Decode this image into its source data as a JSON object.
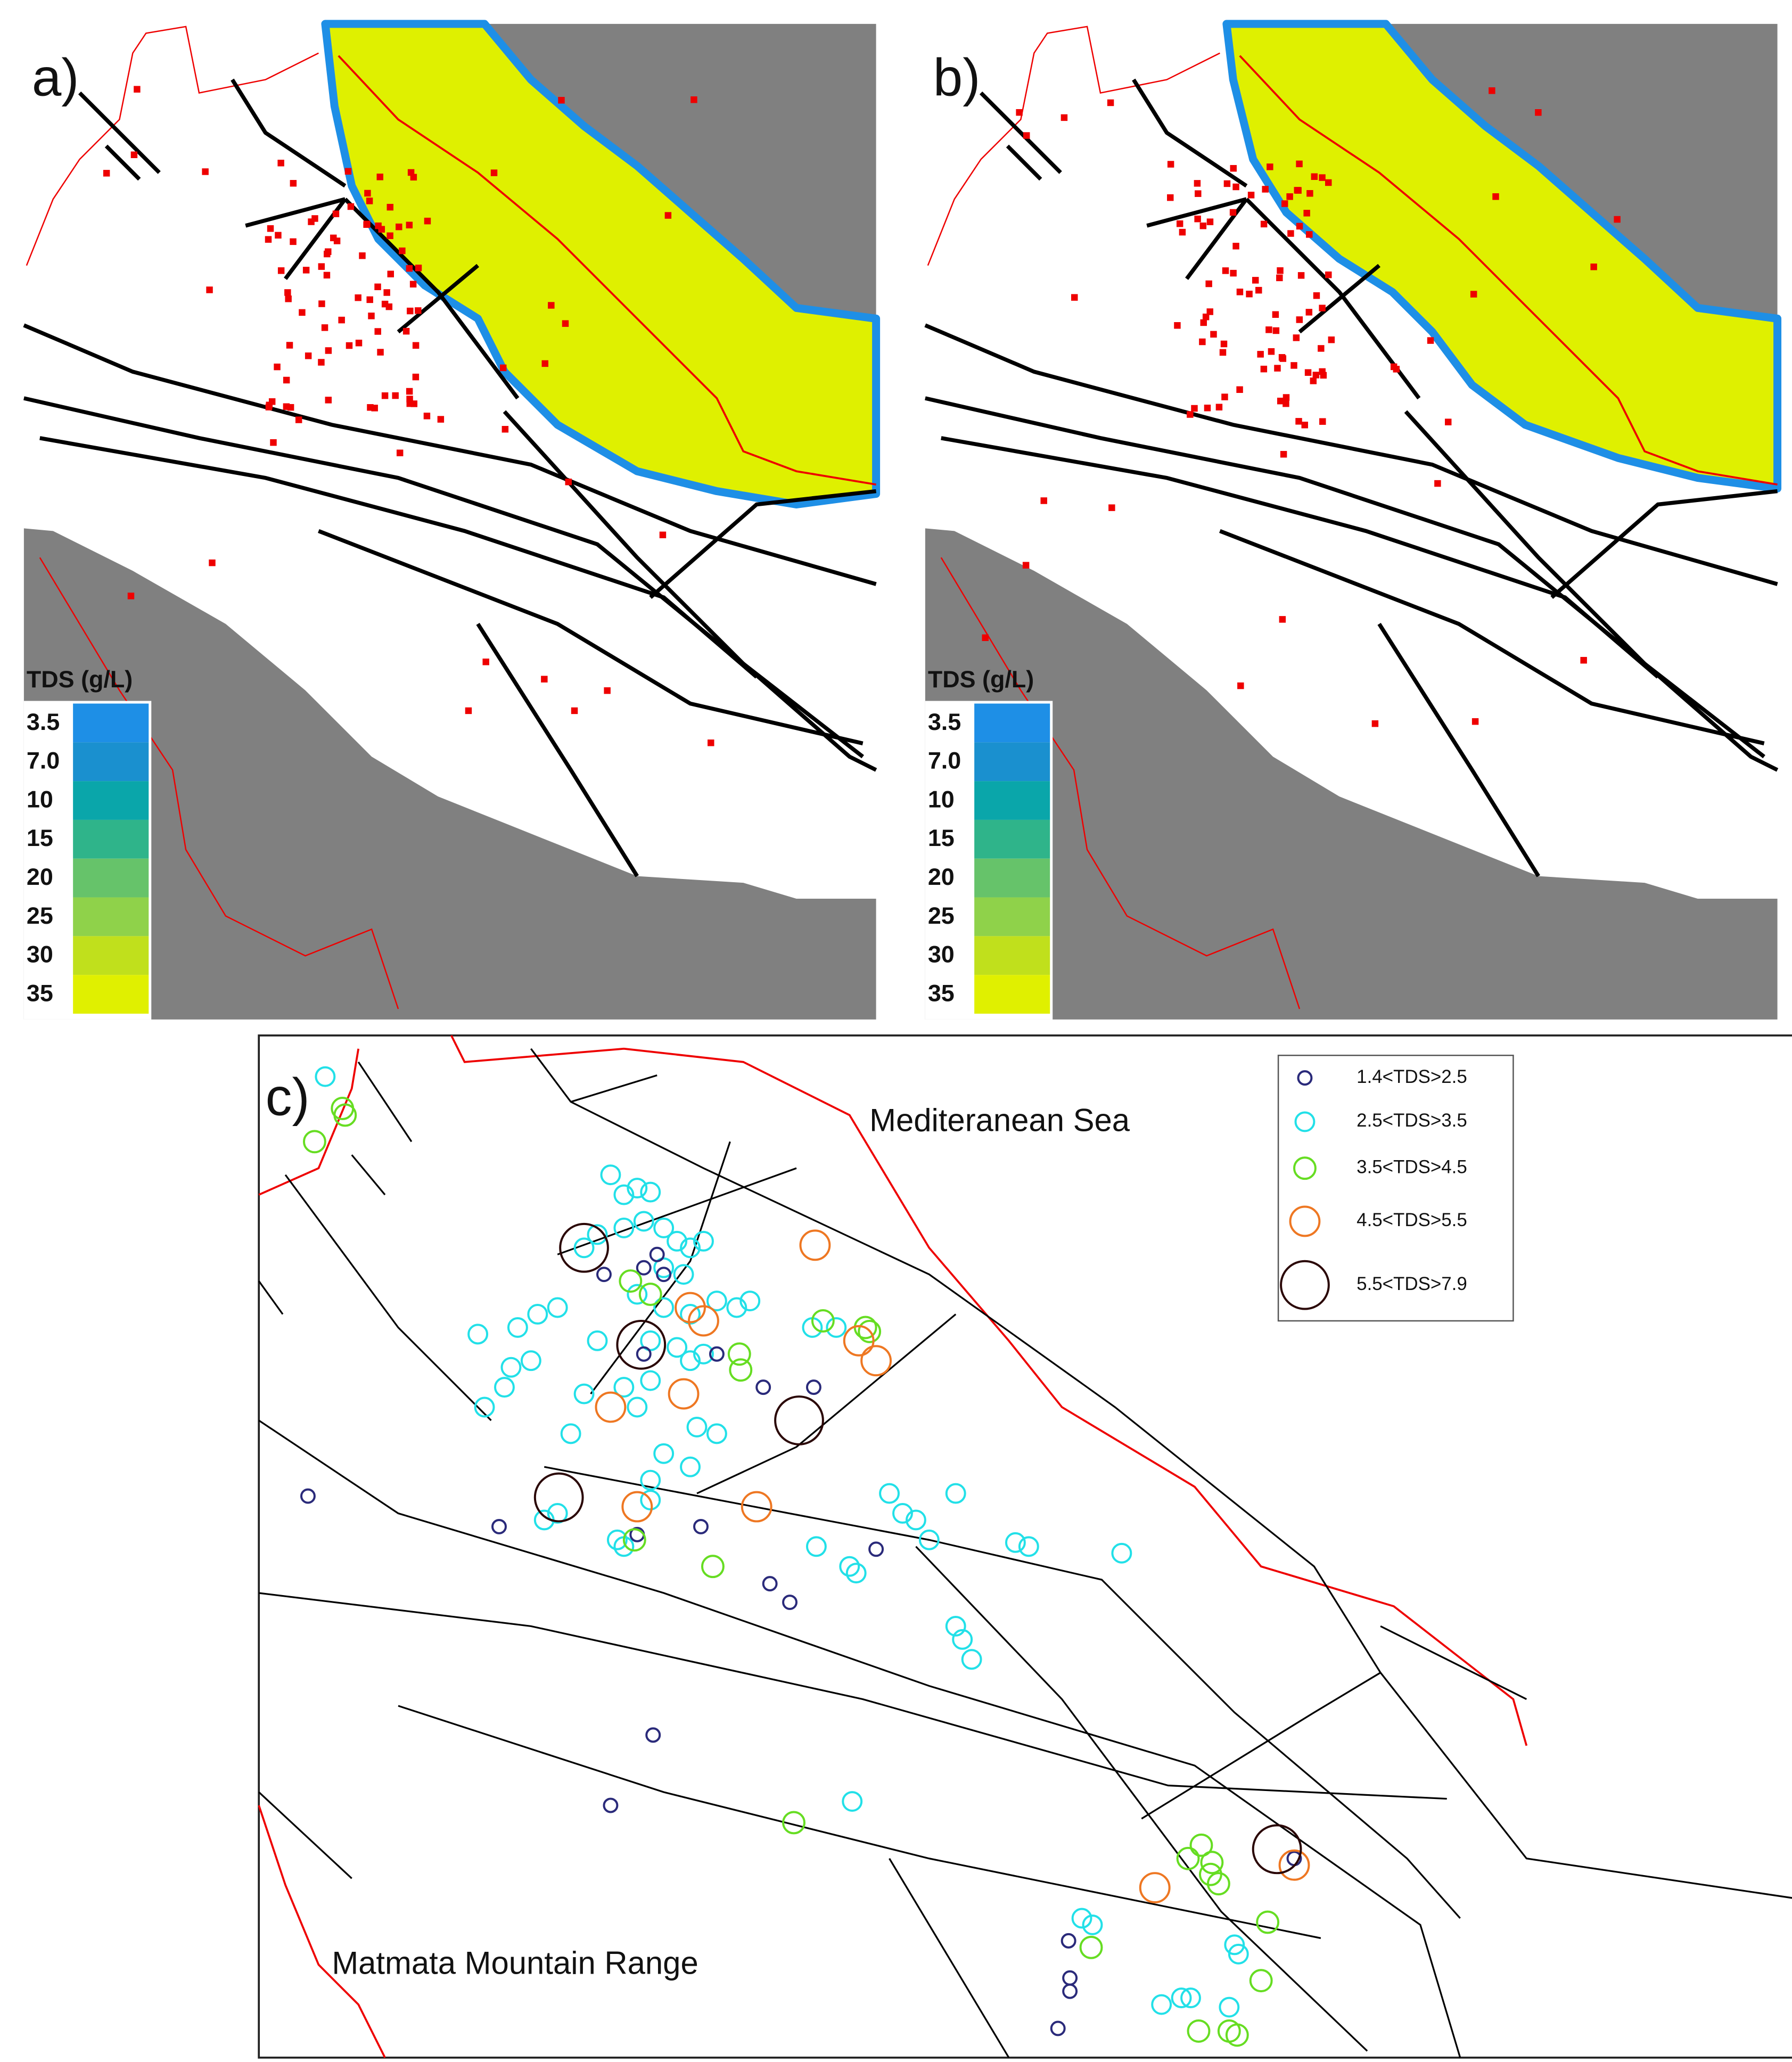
{
  "panels": [
    {
      "label": "a)",
      "legend": {
        "title": "TDS (g/L)",
        "labels": [
          "3.5",
          "7.0",
          "10",
          "15",
          "20",
          "25",
          "30",
          "35"
        ]
      }
    },
    {
      "label": "b)",
      "legend": {
        "title": "TDS (g/L)",
        "labels": [
          "3.5",
          "7.0",
          "10",
          "15",
          "20",
          "25",
          "30",
          "35"
        ]
      }
    }
  ],
  "map_c": {
    "label": "c)",
    "annotations": [
      "Mediteranean Sea",
      "Matmata Mountain Range"
    ],
    "legend": [
      {
        "label": "1.4<TDS>2.5",
        "color": "#2a2a7a"
      },
      {
        "label": "2.5<TDS>3.5",
        "color": "#22e0e8"
      },
      {
        "label": "3.5<TDS>4.5",
        "color": "#66dd22"
      },
      {
        "label": "4.5<TDS>5.5",
        "color": "#ee7722"
      },
      {
        "label": "5.5<TDS>7.9",
        "color": "#7a1010"
      }
    ]
  }
}
